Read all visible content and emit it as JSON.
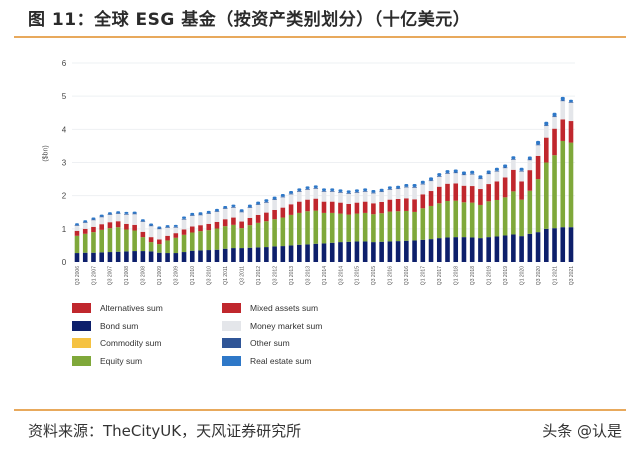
{
  "header": {
    "title": "图 11：全球 ESG 基金（按资产类别划分）（十亿美元）"
  },
  "footer": {
    "source": "资料来源：TheCityUK，天风证券研究所",
    "watermark": "头条 @认是"
  },
  "chart_data": {
    "type": "bar",
    "stacked": true,
    "title": "",
    "xlabel": "",
    "ylabel": "($bn)",
    "ylim": [
      0,
      6
    ],
    "yticks": [
      0,
      1,
      2,
      3,
      4,
      5,
      6
    ],
    "grid": true,
    "legend_position": "bottom",
    "tick_label_every": 2,
    "categories": [
      "Q3 2006",
      "Q4 2006",
      "Q1 2007",
      "Q2 2007",
      "Q3 2007",
      "Q4 2007",
      "Q1 2008",
      "Q2 2008",
      "Q3 2008",
      "Q4 2008",
      "Q1 2009",
      "Q2 2009",
      "Q3 2009",
      "Q4 2009",
      "Q1 2010",
      "Q2 2010",
      "Q3 2010",
      "Q4 2010",
      "Q1 2011",
      "Q2 2011",
      "Q3 2011",
      "Q4 2011",
      "Q1 2012",
      "Q2 2012",
      "Q3 2012",
      "Q4 2012",
      "Q1 2013",
      "Q2 2013",
      "Q3 2013",
      "Q4 2013",
      "Q1 2014",
      "Q2 2014",
      "Q3 2014",
      "Q4 2014",
      "Q1 2015",
      "Q2 2015",
      "Q3 2015",
      "Q4 2015",
      "Q1 2016",
      "Q2 2016",
      "Q3 2016",
      "Q4 2016",
      "Q1 2017",
      "Q2 2017",
      "Q3 2017",
      "Q4 2017",
      "Q1 2018",
      "Q2 2018",
      "Q3 2018",
      "Q4 2018",
      "Q1 2019",
      "Q2 2019",
      "Q3 2019",
      "Q4 2019",
      "Q1 2020",
      "Q2 2020",
      "Q3 2020",
      "Q4 2020",
      "Q1 2021",
      "Q2 2021",
      "Q3 2021"
    ],
    "series": [
      {
        "name": "Alternatives sum",
        "color": "#c0272d",
        "values": [
          0,
          0,
          0,
          0,
          0,
          0,
          0,
          0,
          0,
          0,
          0,
          0,
          0,
          0,
          0,
          0,
          0,
          0,
          0,
          0,
          0,
          0,
          0,
          0,
          0,
          0,
          0,
          0,
          0,
          0,
          0,
          0,
          0,
          0,
          0,
          0,
          0,
          0,
          0,
          0,
          0,
          0,
          0,
          0,
          0,
          0,
          0,
          0,
          0,
          0,
          0,
          0,
          0,
          0,
          0,
          0,
          0,
          0,
          0,
          0,
          0
        ]
      },
      {
        "name": "Bond sum",
        "color": "#0d1f6b",
        "values": [
          0.27,
          0.28,
          0.28,
          0.29,
          0.3,
          0.31,
          0.32,
          0.33,
          0.33,
          0.32,
          0.28,
          0.27,
          0.27,
          0.3,
          0.34,
          0.35,
          0.36,
          0.37,
          0.4,
          0.42,
          0.42,
          0.43,
          0.44,
          0.45,
          0.47,
          0.48,
          0.5,
          0.52,
          0.53,
          0.55,
          0.56,
          0.58,
          0.6,
          0.61,
          0.62,
          0.62,
          0.6,
          0.61,
          0.62,
          0.63,
          0.64,
          0.65,
          0.67,
          0.69,
          0.72,
          0.74,
          0.75,
          0.75,
          0.74,
          0.72,
          0.75,
          0.77,
          0.8,
          0.83,
          0.78,
          0.85,
          0.9,
          1.0,
          1.02,
          1.05,
          1.05
        ]
      },
      {
        "name": "Commodity sum",
        "color": "#f5c242",
        "values": [
          0,
          0,
          0,
          0,
          0,
          0,
          0,
          0,
          0,
          0,
          0,
          0,
          0,
          0,
          0,
          0,
          0,
          0,
          0,
          0,
          0,
          0,
          0,
          0,
          0,
          0,
          0,
          0,
          0,
          0,
          0,
          0,
          0,
          0,
          0,
          0,
          0,
          0,
          0,
          0,
          0,
          0,
          0,
          0,
          0,
          0,
          0,
          0,
          0,
          0,
          0,
          0,
          0,
          0,
          0,
          0,
          0,
          0,
          0,
          0,
          0
        ]
      },
      {
        "name": "Equity sum",
        "color": "#7fa83a",
        "values": [
          0.52,
          0.57,
          0.62,
          0.68,
          0.72,
          0.74,
          0.66,
          0.62,
          0.42,
          0.28,
          0.26,
          0.38,
          0.46,
          0.52,
          0.55,
          0.58,
          0.6,
          0.64,
          0.68,
          0.7,
          0.6,
          0.68,
          0.74,
          0.78,
          0.82,
          0.86,
          0.92,
          0.96,
          1.0,
          1.0,
          0.92,
          0.9,
          0.86,
          0.82,
          0.84,
          0.86,
          0.84,
          0.86,
          0.9,
          0.9,
          0.9,
          0.86,
          0.95,
          1.0,
          1.05,
          1.1,
          1.1,
          1.05,
          1.05,
          1.0,
          1.08,
          1.1,
          1.15,
          1.3,
          1.1,
          1.3,
          1.6,
          2.0,
          2.2,
          2.6,
          2.55
        ]
      },
      {
        "name": "Mixed assets sum",
        "color": "#c0272d",
        "values": [
          0.15,
          0.15,
          0.16,
          0.17,
          0.18,
          0.18,
          0.17,
          0.17,
          0.16,
          0.15,
          0.14,
          0.14,
          0.14,
          0.16,
          0.18,
          0.18,
          0.19,
          0.2,
          0.21,
          0.22,
          0.2,
          0.22,
          0.24,
          0.26,
          0.28,
          0.3,
          0.32,
          0.34,
          0.35,
          0.36,
          0.34,
          0.34,
          0.33,
          0.32,
          0.33,
          0.34,
          0.33,
          0.34,
          0.36,
          0.37,
          0.38,
          0.38,
          0.42,
          0.45,
          0.5,
          0.52,
          0.52,
          0.5,
          0.5,
          0.48,
          0.52,
          0.56,
          0.6,
          0.65,
          0.55,
          0.62,
          0.7,
          0.75,
          0.8,
          0.65,
          0.65
        ]
      },
      {
        "name": "Money market sum",
        "color": "#e4e6ea",
        "values": [
          0.15,
          0.18,
          0.2,
          0.21,
          0.22,
          0.22,
          0.28,
          0.32,
          0.3,
          0.33,
          0.31,
          0.24,
          0.17,
          0.3,
          0.32,
          0.3,
          0.3,
          0.3,
          0.31,
          0.3,
          0.28,
          0.3,
          0.3,
          0.3,
          0.3,
          0.31,
          0.3,
          0.3,
          0.3,
          0.3,
          0.3,
          0.3,
          0.3,
          0.31,
          0.3,
          0.3,
          0.3,
          0.3,
          0.3,
          0.3,
          0.33,
          0.35,
          0.3,
          0.3,
          0.3,
          0.3,
          0.31,
          0.32,
          0.35,
          0.3,
          0.3,
          0.3,
          0.28,
          0.3,
          0.3,
          0.3,
          0.32,
          0.35,
          0.35,
          0.55,
          0.55
        ]
      },
      {
        "name": "Other sum",
        "color": "#2f5597",
        "values": [
          0.02,
          0.02,
          0.02,
          0.02,
          0.02,
          0.02,
          0.02,
          0.02,
          0.02,
          0.02,
          0.02,
          0.02,
          0.02,
          0.02,
          0.02,
          0.02,
          0.02,
          0.02,
          0.02,
          0.02,
          0.02,
          0.02,
          0.02,
          0.02,
          0.02,
          0.02,
          0.02,
          0.02,
          0.02,
          0.02,
          0.02,
          0.02,
          0.02,
          0.02,
          0.02,
          0.02,
          0.02,
          0.02,
          0.02,
          0.02,
          0.02,
          0.02,
          0.02,
          0.02,
          0.02,
          0.02,
          0.02,
          0.02,
          0.02,
          0.02,
          0.02,
          0.02,
          0.02,
          0.02,
          0.02,
          0.02,
          0.02,
          0.02,
          0.02,
          0.02,
          0.02
        ]
      },
      {
        "name": "Real estate sum",
        "color": "#2e78c8",
        "values": [
          0.03,
          0.03,
          0.03,
          0.03,
          0.03,
          0.03,
          0.03,
          0.03,
          0.03,
          0.03,
          0.03,
          0.03,
          0.03,
          0.04,
          0.04,
          0.04,
          0.04,
          0.04,
          0.04,
          0.04,
          0.04,
          0.05,
          0.05,
          0.05,
          0.05,
          0.05,
          0.05,
          0.05,
          0.05,
          0.05,
          0.05,
          0.05,
          0.05,
          0.05,
          0.05,
          0.05,
          0.05,
          0.05,
          0.05,
          0.05,
          0.05,
          0.06,
          0.06,
          0.06,
          0.06,
          0.06,
          0.06,
          0.06,
          0.06,
          0.06,
          0.06,
          0.06,
          0.06,
          0.06,
          0.06,
          0.06,
          0.08,
          0.08,
          0.08,
          0.08,
          0.04
        ]
      }
    ],
    "legend": [
      {
        "label": "Alternatives sum",
        "color": "#c0272d"
      },
      {
        "label": "Mixed assets sum",
        "color": "#c0272d"
      },
      {
        "label": "Bond sum",
        "color": "#0d1f6b"
      },
      {
        "label": "Money market sum",
        "color": "#e4e6ea"
      },
      {
        "label": "Commodity sum",
        "color": "#f5c242"
      },
      {
        "label": "Other sum",
        "color": "#2f5597"
      },
      {
        "label": "Equity sum",
        "color": "#7fa83a"
      },
      {
        "label": "Real estate sum",
        "color": "#2e78c8"
      }
    ]
  }
}
